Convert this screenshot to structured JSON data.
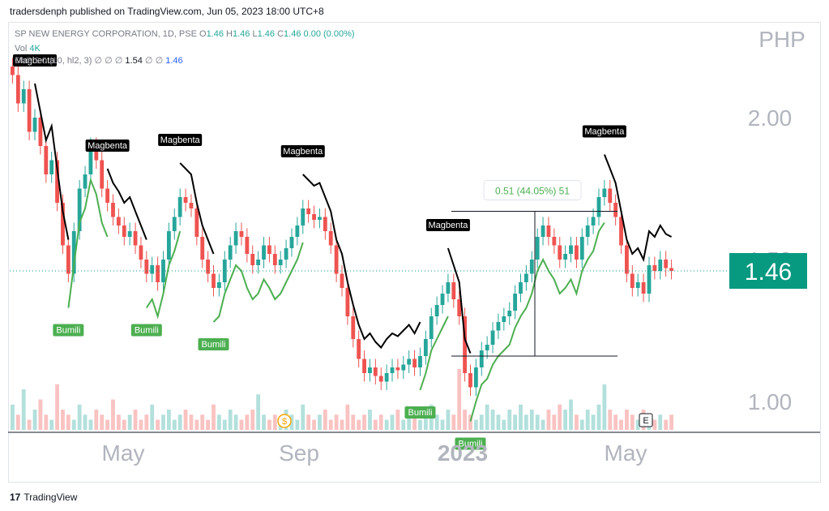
{
  "header": {
    "caption": "tradersdenph published on TradingView.com, Jun 05, 2023 18:00 UTC+8",
    "symbol_line": "SP NEW ENERGY CORPORATION, 1D, PSE",
    "ohlc": {
      "o_label": "O",
      "o": "1.46",
      "h_label": "H",
      "h": "1.46",
      "l_label": "L",
      "l": "1.46",
      "c_label": "C",
      "c": "1.46",
      "change": "0.00 (0.00%)"
    },
    "vol_label": "Vol",
    "vol_value": "4K",
    "indicator_label": "ChS 2.0 (10, hl2, 3)",
    "indicator_values": [
      "∅",
      "∅",
      "∅",
      "1.54",
      "∅",
      "∅",
      "1.46"
    ]
  },
  "footer": {
    "brand": "TradingView"
  },
  "colors": {
    "up": "#26a69a",
    "down": "#ef5350",
    "supertrend_up": "#4caf50",
    "supertrend_down": "#000000",
    "last_price_bg": "#089981",
    "axis_text": "#b2b5be"
  },
  "chart_data": {
    "type": "candlestick",
    "currency": "PHP",
    "yaxis_ticks": [
      "2.00",
      "1.50",
      "1.00"
    ],
    "ylim": [
      0.9,
      2.3
    ],
    "xaxis_ticks": [
      "May",
      "Sep",
      "2023",
      "May"
    ],
    "last_price": "1.46",
    "measure": {
      "label": "0.51 (44.05%) 51",
      "from": 1.16,
      "to": 1.67
    },
    "closes": [
      2.15,
      2.05,
      2.1,
      1.95,
      2.0,
      1.9,
      1.8,
      1.85,
      1.7,
      1.55,
      1.45,
      1.6,
      1.75,
      1.8,
      1.9,
      1.85,
      1.75,
      1.7,
      1.65,
      1.62,
      1.58,
      1.6,
      1.55,
      1.5,
      1.45,
      1.48,
      1.42,
      1.5,
      1.6,
      1.65,
      1.72,
      1.7,
      1.68,
      1.58,
      1.5,
      1.45,
      1.4,
      1.42,
      1.5,
      1.55,
      1.6,
      1.58,
      1.52,
      1.48,
      1.5,
      1.55,
      1.52,
      1.48,
      1.5,
      1.54,
      1.58,
      1.62,
      1.68,
      1.66,
      1.64,
      1.65,
      1.6,
      1.55,
      1.45,
      1.4,
      1.3,
      1.22,
      1.15,
      1.1,
      1.12,
      1.09,
      1.07,
      1.1,
      1.12,
      1.11,
      1.13,
      1.15,
      1.12,
      1.16,
      1.22,
      1.3,
      1.34,
      1.38,
      1.42,
      1.36,
      1.3,
      1.1,
      1.05,
      1.12,
      1.18,
      1.2,
      1.25,
      1.28,
      1.3,
      1.32,
      1.38,
      1.42,
      1.45,
      1.5,
      1.58,
      1.62,
      1.58,
      1.55,
      1.5,
      1.52,
      1.55,
      1.5,
      1.58,
      1.62,
      1.65,
      1.72,
      1.75,
      1.7,
      1.65,
      1.55,
      1.45,
      1.4,
      1.42,
      1.38,
      1.48,
      1.46,
      1.5,
      1.47,
      1.46
    ],
    "volumes": [
      5,
      3,
      8,
      2,
      4,
      6,
      3,
      2,
      9,
      4,
      3,
      2,
      5,
      3,
      2,
      4,
      3,
      2,
      6,
      3,
      2,
      3,
      4,
      2,
      3,
      5,
      2,
      3,
      4,
      2,
      3,
      4,
      3,
      2,
      3,
      2,
      5,
      3,
      2,
      4,
      3,
      2,
      3,
      4,
      7,
      3,
      2,
      3,
      2,
      4,
      3,
      2,
      5,
      3,
      2,
      3,
      4,
      2,
      3,
      2,
      5,
      3,
      2,
      3,
      4,
      2,
      3,
      2,
      3,
      4,
      2,
      3,
      4,
      2,
      3,
      5,
      3,
      2,
      4,
      3,
      12,
      4,
      3,
      2,
      3,
      5,
      4,
      3,
      2,
      4,
      3,
      5,
      3,
      4,
      3,
      2,
      4,
      3,
      5,
      4,
      6,
      3,
      2,
      4,
      3,
      5,
      9,
      4,
      3,
      2,
      4,
      3,
      2,
      4,
      3,
      2,
      3,
      2,
      3
    ],
    "supertrend_labels": [
      {
        "text": "Magbenta",
        "type": "sell",
        "at": 4
      },
      {
        "text": "Bumili",
        "type": "buy",
        "at": 10
      },
      {
        "text": "Magbenta",
        "type": "sell",
        "at": 17
      },
      {
        "text": "Bumili",
        "type": "buy",
        "at": 24
      },
      {
        "text": "Magbenta",
        "type": "sell",
        "at": 30
      },
      {
        "text": "Bumili",
        "type": "buy",
        "at": 36
      },
      {
        "text": "Magbenta",
        "type": "sell",
        "at": 52
      },
      {
        "text": "Bumili",
        "type": "buy",
        "at": 73
      },
      {
        "text": "Magbenta",
        "type": "sell",
        "at": 78
      },
      {
        "text": "Bumili",
        "type": "buy",
        "at": 82
      },
      {
        "text": "Magbenta",
        "type": "sell",
        "at": 106
      }
    ],
    "earnings_marker": "E",
    "dividend_marker": "$"
  }
}
